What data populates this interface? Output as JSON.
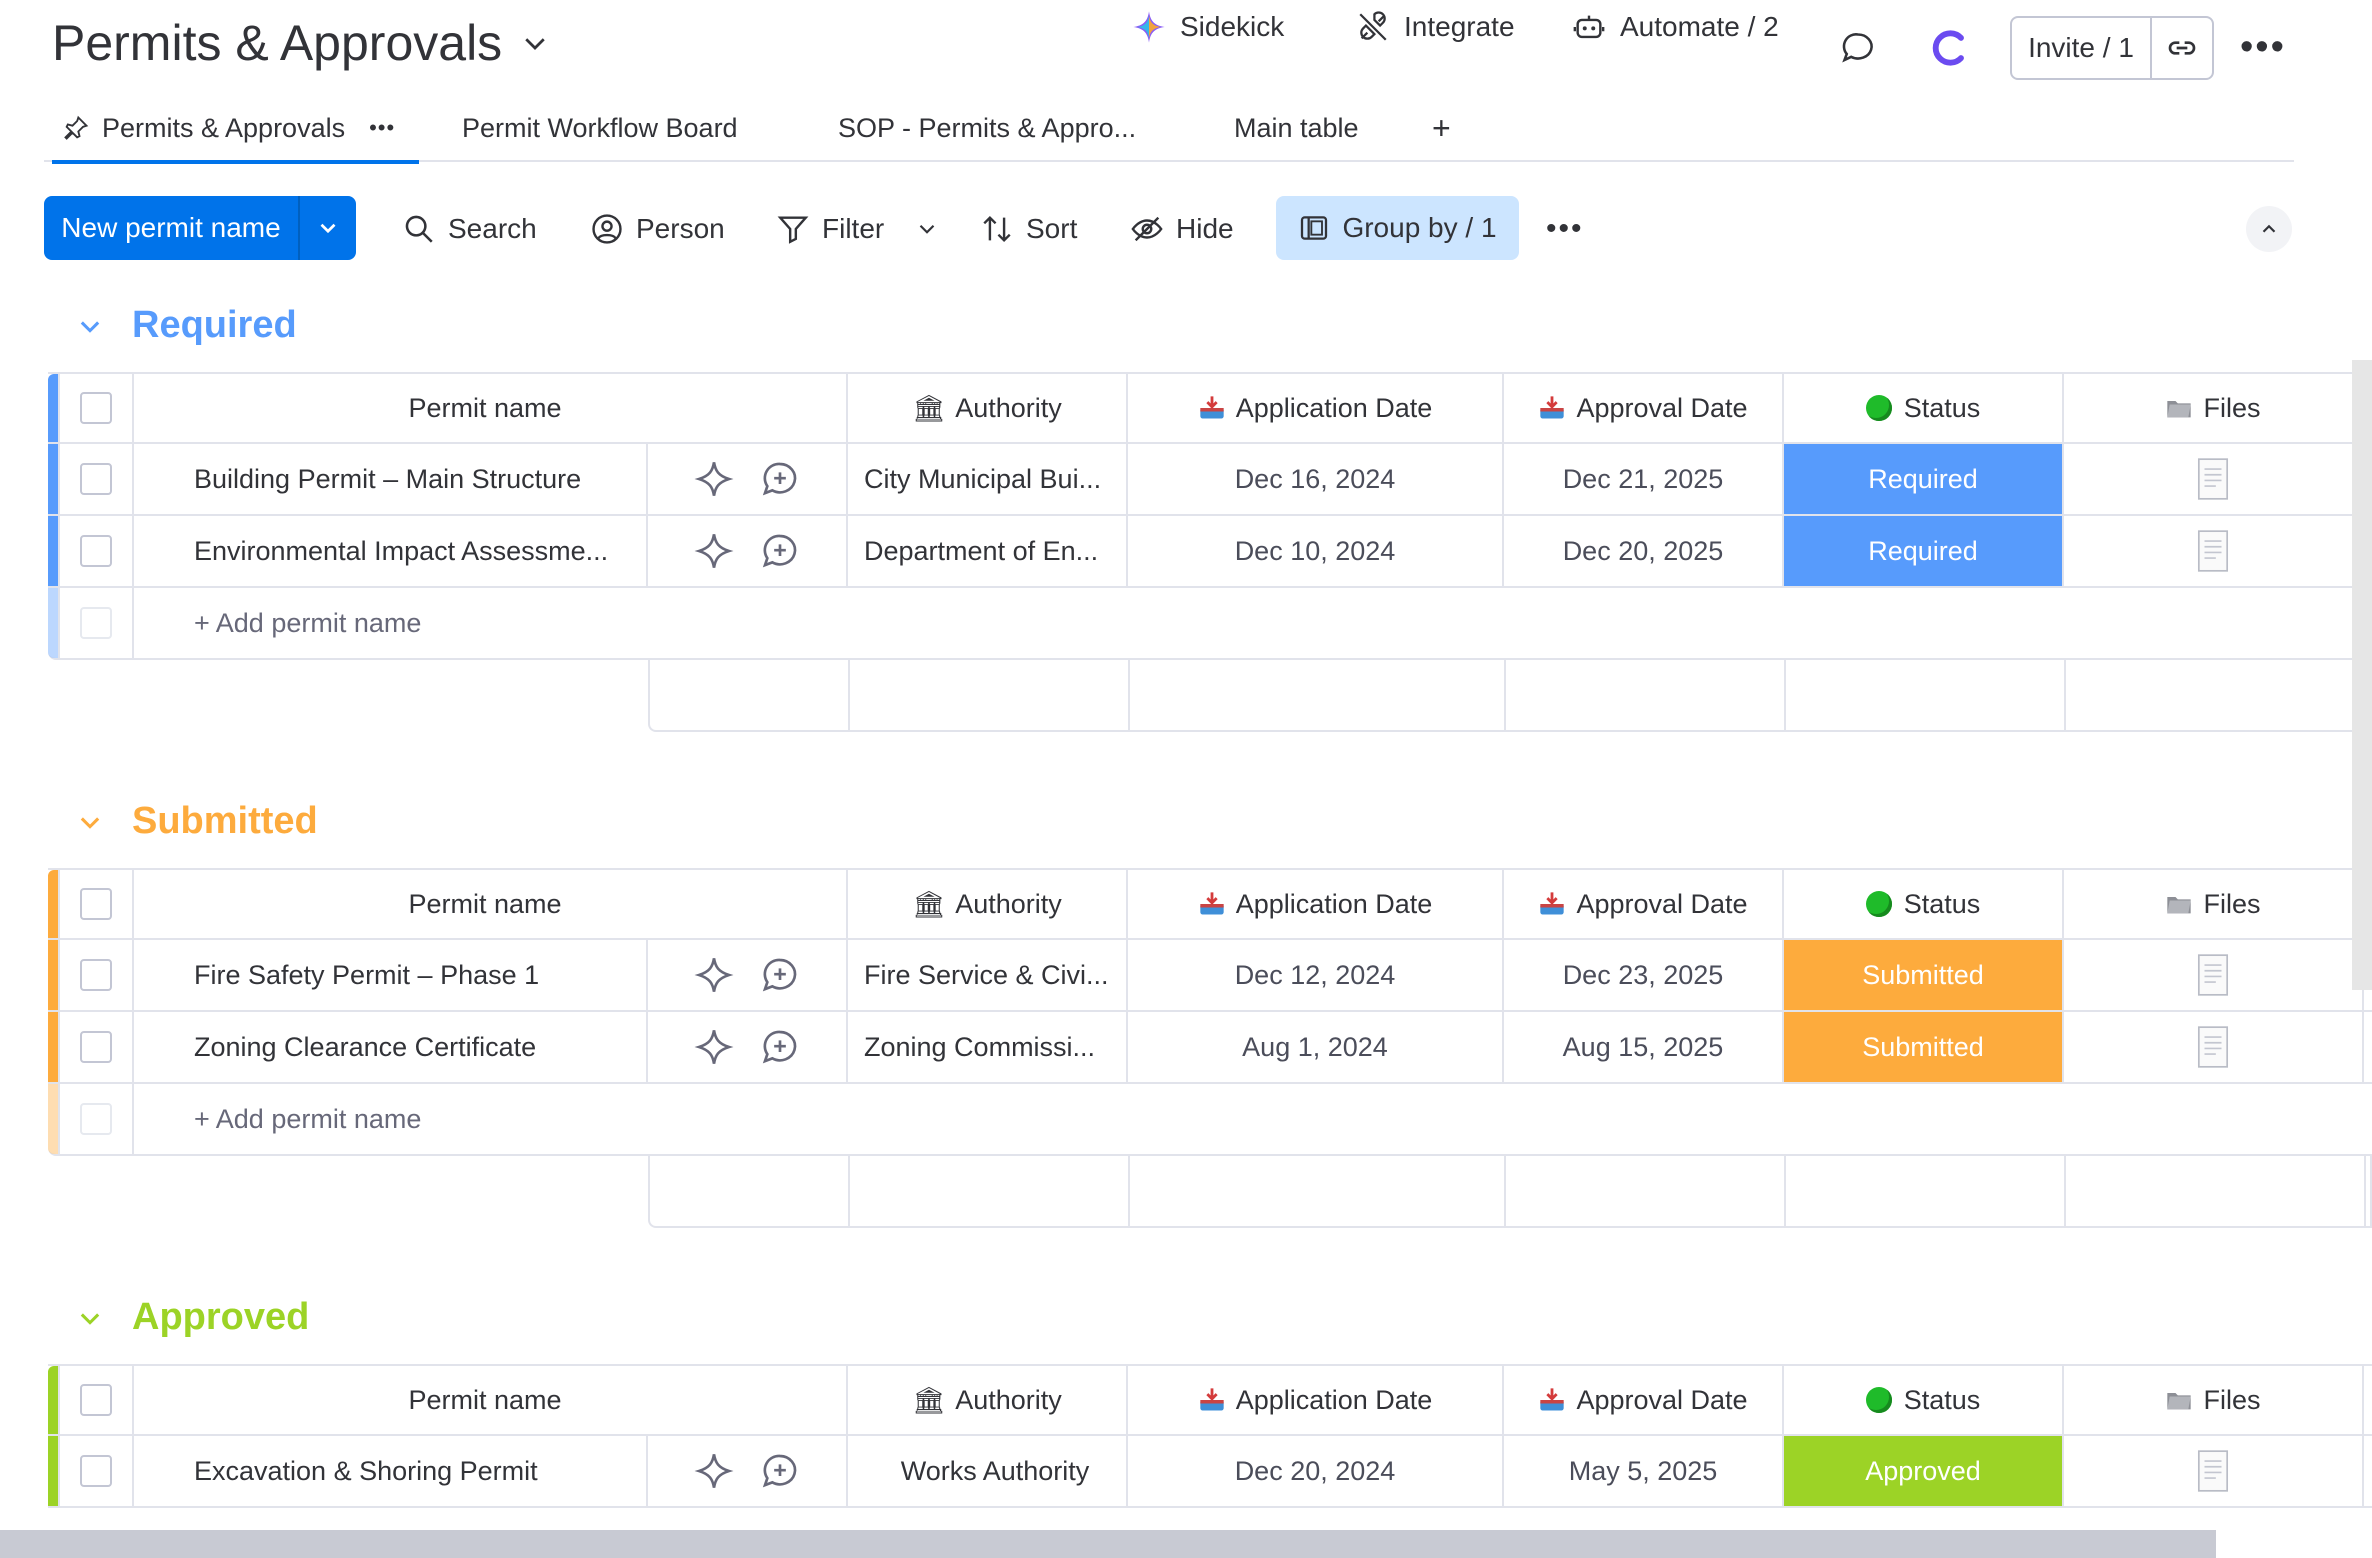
{
  "board": {
    "title": "Permits & Approvals"
  },
  "top_actions": {
    "sidekick": "Sidekick",
    "integrate": "Integrate",
    "automate": "Automate / 2",
    "invite": "Invite / 1"
  },
  "tabs": [
    {
      "label": "Permits & Approvals",
      "active": true
    },
    {
      "label": "Permit Workflow Board"
    },
    {
      "label": "SOP - Permits & Appro..."
    },
    {
      "label": "Main table"
    }
  ],
  "toolbar": {
    "new_item": "New permit name",
    "search": "Search",
    "person": "Person",
    "filter": "Filter",
    "sort": "Sort",
    "hide": "Hide",
    "group_by": "Group by / 1"
  },
  "columns": {
    "name": "Permit name",
    "authority": "Authority",
    "application_date": "Application Date",
    "approval_date": "Approval Date",
    "status": "Status",
    "files": "Files"
  },
  "add_item_label": "+ Add permit name",
  "groups": [
    {
      "title": "Required",
      "color": "#579bfc",
      "rows": [
        {
          "name": "Building Permit – Main Structure",
          "authority": "City Municipal Bui...",
          "application_date": "Dec 16, 2024",
          "approval_date": "Dec 21, 2025",
          "status": "Required"
        },
        {
          "name": "Environmental Impact Assessme...",
          "authority": "Department of En...",
          "application_date": "Dec 10, 2024",
          "approval_date": "Dec 20, 2025",
          "status": "Required"
        }
      ]
    },
    {
      "title": "Submitted",
      "color": "#fdab3d",
      "rows": [
        {
          "name": "Fire Safety Permit – Phase 1",
          "authority": "Fire Service & Civi...",
          "application_date": "Dec 12, 2024",
          "approval_date": "Dec 23, 2025",
          "status": "Submitted"
        },
        {
          "name": "Zoning Clearance Certificate",
          "authority": "Zoning Commissi...",
          "application_date": "Aug 1, 2024",
          "approval_date": "Aug 15, 2025",
          "status": "Submitted"
        }
      ]
    },
    {
      "title": "Approved",
      "color": "#9cd326",
      "rows": [
        {
          "name": "Excavation & Shoring Permit",
          "authority": "Works Authority",
          "application_date": "Dec 20, 2024",
          "approval_date": "May 5, 2025",
          "status": "Approved"
        }
      ]
    }
  ],
  "icons": {
    "authority": "bank-icon",
    "dates": "inbox-tray-icon",
    "status": "green-circle-icon",
    "files": "folder-icon"
  }
}
